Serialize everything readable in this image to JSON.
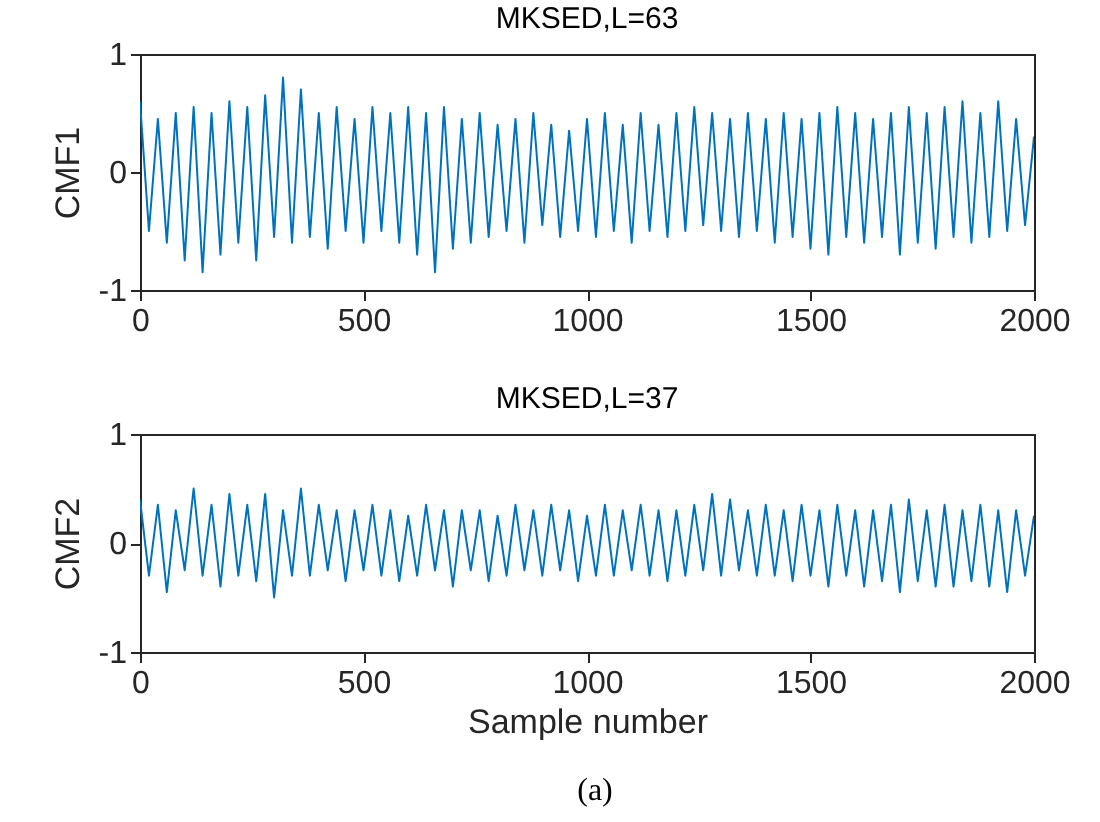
{
  "chart_data": [
    {
      "type": "line",
      "title": "MKSED,L=63",
      "ylabel": "CMF1",
      "x": [
        0,
        20,
        40,
        60,
        80,
        100,
        120,
        140,
        160,
        180,
        200,
        220,
        240,
        260,
        280,
        300,
        320,
        340,
        360,
        380,
        400,
        420,
        440,
        460,
        480,
        500,
        520,
        540,
        560,
        580,
        600,
        620,
        640,
        660,
        680,
        700,
        720,
        740,
        760,
        780,
        800,
        820,
        840,
        860,
        880,
        900,
        920,
        940,
        960,
        980,
        1000,
        1020,
        1040,
        1060,
        1080,
        1100,
        1120,
        1140,
        1160,
        1180,
        1200,
        1220,
        1240,
        1260,
        1280,
        1300,
        1320,
        1340,
        1360,
        1380,
        1400,
        1420,
        1440,
        1460,
        1480,
        1500,
        1520,
        1540,
        1560,
        1580,
        1600,
        1620,
        1640,
        1660,
        1680,
        1700,
        1720,
        1740,
        1760,
        1780,
        1800,
        1820,
        1840,
        1860,
        1880,
        1900,
        1920,
        1940,
        1960,
        1980,
        2000
      ],
      "series": [
        {
          "color": "#0072bd",
          "values": [
            0.6,
            -0.5,
            0.45,
            -0.6,
            0.5,
            -0.75,
            0.55,
            -0.85,
            0.5,
            -0.7,
            0.6,
            -0.6,
            0.55,
            -0.75,
            0.65,
            -0.55,
            0.8,
            -0.6,
            0.7,
            -0.55,
            0.5,
            -0.65,
            0.55,
            -0.5,
            0.45,
            -0.6,
            0.55,
            -0.5,
            0.5,
            -0.6,
            0.55,
            -0.7,
            0.5,
            -0.85,
            0.55,
            -0.65,
            0.45,
            -0.6,
            0.5,
            -0.55,
            0.4,
            -0.5,
            0.45,
            -0.6,
            0.5,
            -0.45,
            0.4,
            -0.55,
            0.35,
            -0.5,
            0.45,
            -0.55,
            0.5,
            -0.5,
            0.4,
            -0.6,
            0.5,
            -0.5,
            0.4,
            -0.55,
            0.5,
            -0.5,
            0.55,
            -0.45,
            0.5,
            -0.5,
            0.45,
            -0.55,
            0.5,
            -0.5,
            0.45,
            -0.6,
            0.5,
            -0.55,
            0.45,
            -0.65,
            0.5,
            -0.7,
            0.55,
            -0.55,
            0.5,
            -0.6,
            0.45,
            -0.55,
            0.5,
            -0.7,
            0.55,
            -0.6,
            0.5,
            -0.65,
            0.55,
            -0.55,
            0.6,
            -0.6,
            0.5,
            -0.55,
            0.6,
            -0.5,
            0.45,
            -0.45,
            0.3
          ]
        }
      ],
      "xlim": [
        0,
        2000
      ],
      "xticks": [
        0,
        500,
        1000,
        1500,
        2000
      ],
      "ylim": [
        -1,
        1
      ],
      "yticks": [
        -1,
        0,
        1
      ]
    },
    {
      "type": "line",
      "title": "MKSED,L=37",
      "xlabel": "Sample number",
      "ylabel": "CMF2",
      "x": [
        0,
        20,
        40,
        60,
        80,
        100,
        120,
        140,
        160,
        180,
        200,
        220,
        240,
        260,
        280,
        300,
        320,
        340,
        360,
        380,
        400,
        420,
        440,
        460,
        480,
        500,
        520,
        540,
        560,
        580,
        600,
        620,
        640,
        660,
        680,
        700,
        720,
        740,
        760,
        780,
        800,
        820,
        840,
        860,
        880,
        900,
        920,
        940,
        960,
        980,
        1000,
        1020,
        1040,
        1060,
        1080,
        1100,
        1120,
        1140,
        1160,
        1180,
        1200,
        1220,
        1240,
        1260,
        1280,
        1300,
        1320,
        1340,
        1360,
        1380,
        1400,
        1420,
        1440,
        1460,
        1480,
        1500,
        1520,
        1540,
        1560,
        1580,
        1600,
        1620,
        1640,
        1660,
        1680,
        1700,
        1720,
        1740,
        1760,
        1780,
        1800,
        1820,
        1840,
        1860,
        1880,
        1900,
        1920,
        1940,
        1960,
        1980,
        2000
      ],
      "series": [
        {
          "color": "#0072bd",
          "values": [
            0.4,
            -0.3,
            0.35,
            -0.45,
            0.3,
            -0.25,
            0.5,
            -0.3,
            0.35,
            -0.4,
            0.45,
            -0.3,
            0.35,
            -0.35,
            0.45,
            -0.5,
            0.3,
            -0.3,
            0.5,
            -0.3,
            0.35,
            -0.25,
            0.3,
            -0.35,
            0.3,
            -0.25,
            0.35,
            -0.3,
            0.3,
            -0.35,
            0.25,
            -0.3,
            0.35,
            -0.25,
            0.3,
            -0.4,
            0.3,
            -0.25,
            0.3,
            -0.35,
            0.25,
            -0.3,
            0.35,
            -0.25,
            0.3,
            -0.3,
            0.35,
            -0.25,
            0.3,
            -0.35,
            0.25,
            -0.3,
            0.35,
            -0.3,
            0.3,
            -0.25,
            0.35,
            -0.3,
            0.3,
            -0.35,
            0.3,
            -0.3,
            0.35,
            -0.25,
            0.45,
            -0.3,
            0.4,
            -0.25,
            0.3,
            -0.3,
            0.35,
            -0.3,
            0.3,
            -0.35,
            0.35,
            -0.3,
            0.3,
            -0.4,
            0.35,
            -0.3,
            0.3,
            -0.4,
            0.3,
            -0.35,
            0.35,
            -0.45,
            0.4,
            -0.35,
            0.3,
            -0.4,
            0.35,
            -0.4,
            0.3,
            -0.35,
            0.35,
            -0.4,
            0.3,
            -0.45,
            0.3,
            -0.3,
            0.25
          ]
        }
      ],
      "xlim": [
        0,
        2000
      ],
      "xticks": [
        0,
        500,
        1000,
        1500,
        2000
      ],
      "ylim": [
        -1,
        1
      ],
      "yticks": [
        -1,
        0,
        1
      ],
      "annotations": [
        "(a)"
      ]
    }
  ]
}
